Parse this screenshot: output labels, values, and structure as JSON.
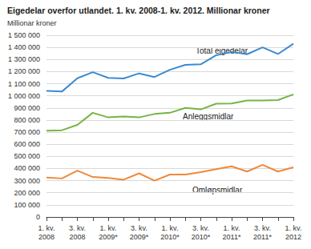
{
  "chart_data": {
    "type": "line",
    "title": "Eigedelar overfor utlandet. 1. kv. 2008-1. kv. 2012. Millionar kroner",
    "ylabel": "Millionar kroner",
    "categories": [
      "1. kv.\n2008",
      null,
      "3. kv.\n2008",
      null,
      "1. kv.\n2009*",
      null,
      "3. kv.\n2009*",
      null,
      "1. kv.\n2010*",
      null,
      "3. kv.\n2010*",
      null,
      "1. kv.\n2011*",
      null,
      "3. kv.\n2011*",
      null,
      "1. kv.\n2012"
    ],
    "series": [
      {
        "name": "Total eigedelar",
        "color": "#3a8bd2",
        "values": [
          1040000,
          1035000,
          1145000,
          1195000,
          1148000,
          1143000,
          1185000,
          1155000,
          1215000,
          1255000,
          1260000,
          1335000,
          1362000,
          1343000,
          1400000,
          1345000,
          1430000
        ]
      },
      {
        "name": "Anleggsmidlar",
        "color": "#76b444",
        "values": [
          712000,
          716000,
          760000,
          860000,
          822000,
          830000,
          822000,
          850000,
          860000,
          900000,
          888000,
          935000,
          937000,
          962000,
          962000,
          965000,
          1012000
        ]
      },
      {
        "name": "Omløpsmidlar",
        "color": "#f0883a",
        "values": [
          325000,
          318000,
          382000,
          330000,
          322000,
          308000,
          360000,
          300000,
          350000,
          350000,
          370000,
          395000,
          418000,
          375000,
          430000,
          375000,
          410000
        ]
      }
    ],
    "ylim": [
      0,
      1500000
    ],
    "yticks": [
      0,
      {
        "value": 100000,
        "label": "100 000"
      },
      {
        "value": 200000,
        "label": "200 000"
      },
      {
        "value": 300000,
        "label": "300 000"
      },
      {
        "value": 400000,
        "label": "400 000"
      },
      {
        "value": 500000,
        "label": "500 000"
      },
      {
        "value": 600000,
        "label": "600 000"
      },
      {
        "value": 700000,
        "label": "700 000"
      },
      {
        "value": 800000,
        "label": "800 000"
      },
      {
        "value": 900000,
        "label": "900 000"
      },
      {
        "value": 1000000,
        "label": "1 000 000"
      },
      {
        "value": 1100000,
        "label": "1 100 000"
      },
      {
        "value": 1200000,
        "label": "1 200 000"
      },
      {
        "value": 1300000,
        "label": "1 300 000"
      },
      {
        "value": 1400000,
        "label": "1 400 000"
      },
      {
        "value": 1500000,
        "label": "1 500 000"
      }
    ],
    "grid": true
  }
}
